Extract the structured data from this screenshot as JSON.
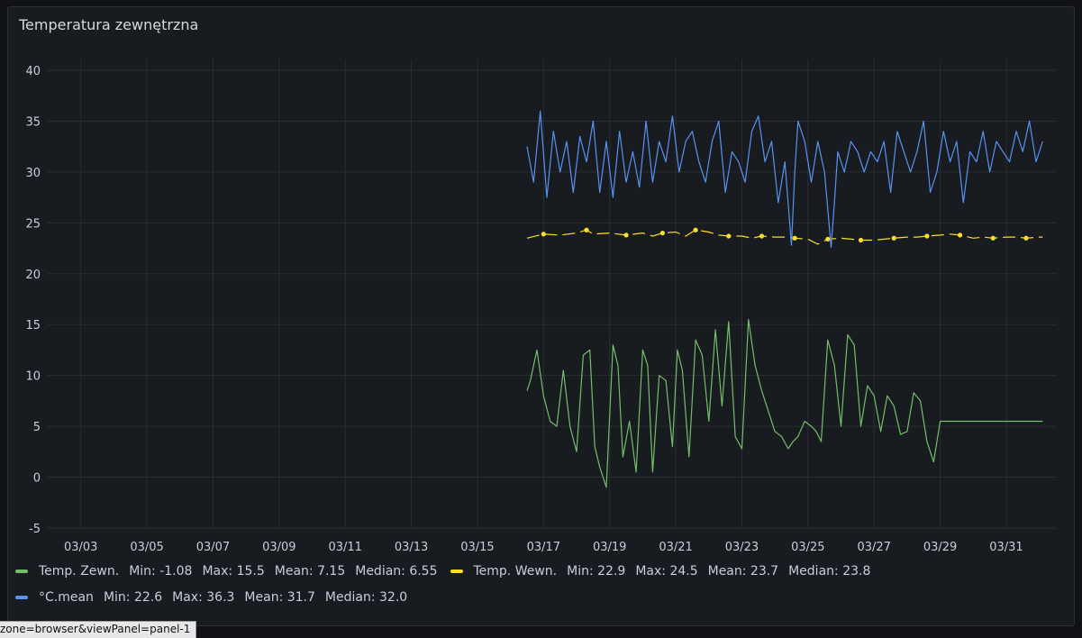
{
  "panel": {
    "title": "Temperatura zewnętrzna"
  },
  "status_url": "zone=browser&viewPanel=panel-1",
  "chart_data": {
    "type": "line",
    "title": "Temperatura zewnętrzna",
    "xlabel": "",
    "ylabel": "",
    "x_ticks": [
      "03/03",
      "03/05",
      "03/07",
      "03/09",
      "03/11",
      "03/13",
      "03/15",
      "03/17",
      "03/19",
      "03/21",
      "03/23",
      "03/25",
      "03/27",
      "03/29",
      "03/31"
    ],
    "xlim": [
      "03/02 00:00",
      "04/01 12:00"
    ],
    "y_ticks": [
      40,
      35,
      30,
      25,
      20,
      15,
      10,
      5,
      0,
      -5
    ],
    "ylim": [
      -5,
      40
    ],
    "grid": true,
    "legend_position": "bottom",
    "series": [
      {
        "name": "Temp. Zewn.",
        "color": "#73bf69",
        "stats": {
          "min": "-1.08",
          "max": "15.5",
          "mean": "7.15",
          "median": "6.55"
        },
        "x_days": [
          16.5,
          16.6,
          16.8,
          17.0,
          17.2,
          17.4,
          17.6,
          17.8,
          18.0,
          18.2,
          18.4,
          18.55,
          18.7,
          18.9,
          19.1,
          19.25,
          19.4,
          19.6,
          19.8,
          20.0,
          20.15,
          20.3,
          20.5,
          20.7,
          20.9,
          21.05,
          21.2,
          21.4,
          21.6,
          21.8,
          22.0,
          22.2,
          22.4,
          22.6,
          22.8,
          23.0,
          23.2,
          23.4,
          23.6,
          23.8,
          24.0,
          24.2,
          24.4,
          24.55,
          24.7,
          24.9,
          25.1,
          25.25,
          25.4,
          25.6,
          25.8,
          26.0,
          26.2,
          26.4,
          26.6,
          26.8,
          27.0,
          27.2,
          27.4,
          27.6,
          27.8,
          28.0,
          28.2,
          28.4,
          28.6,
          28.8,
          29.0,
          29.2,
          29.4,
          29.6,
          29.8,
          30.0,
          30.2,
          30.4,
          30.6,
          30.8,
          31.0,
          31.2,
          31.4,
          31.6,
          31.8,
          32.0,
          32.1
        ],
        "values": [
          8.5,
          9.5,
          12.5,
          8,
          5.5,
          5,
          10.5,
          5,
          2.5,
          12,
          12.5,
          3,
          1,
          -1,
          13,
          11,
          2,
          5.5,
          0.5,
          12.5,
          11,
          0.5,
          10,
          9.5,
          3,
          12.5,
          10.5,
          2,
          13.5,
          12,
          5.5,
          14.5,
          7,
          15.3,
          4,
          2.8,
          15.5,
          11,
          8.5,
          6.5,
          4.5,
          4,
          2.8,
          3.5,
          4,
          5.5,
          5,
          4.5,
          3.5,
          13.5,
          11,
          5,
          14,
          13,
          5,
          9,
          8,
          4.5,
          8,
          7,
          4.2,
          4.5,
          8.3,
          7.5,
          3.5,
          1.5,
          5.5,
          5.5,
          5.5,
          5.5,
          5.5,
          5.5,
          5.5,
          5.5,
          5.5,
          5.5,
          5.5,
          5.5,
          5.5,
          5.5,
          5.5,
          5.5,
          5.5
        ]
      },
      {
        "name": "Temp. Wewn.",
        "color": "#fade2a",
        "stats": {
          "min": "22.9",
          "max": "24.5",
          "mean": "23.7",
          "median": "23.8"
        },
        "x_days": [
          16.5,
          17.0,
          17.5,
          18.0,
          18.3,
          18.5,
          19.0,
          19.5,
          20.0,
          20.3,
          20.6,
          21.0,
          21.3,
          21.6,
          22.0,
          22.3,
          22.6,
          23.0,
          23.3,
          23.6,
          24.0,
          24.3,
          24.6,
          25.0,
          25.3,
          25.6,
          26.0,
          26.3,
          26.6,
          27.0,
          27.3,
          27.6,
          28.0,
          28.3,
          28.6,
          29.0,
          29.3,
          29.6,
          30.0,
          30.3,
          30.6,
          31.0,
          31.3,
          31.6,
          32.0,
          32.1
        ],
        "values": [
          23.5,
          23.9,
          23.8,
          24.0,
          24.3,
          23.9,
          24.0,
          23.8,
          24.0,
          23.7,
          24.0,
          24.1,
          23.7,
          24.3,
          24.1,
          23.8,
          23.7,
          23.7,
          23.5,
          23.7,
          23.6,
          23.6,
          23.5,
          23.4,
          22.9,
          23.4,
          23.5,
          23.4,
          23.3,
          23.3,
          23.4,
          23.5,
          23.6,
          23.6,
          23.7,
          23.8,
          23.9,
          23.8,
          23.5,
          23.6,
          23.5,
          23.6,
          23.6,
          23.5,
          23.6,
          23.6
        ]
      },
      {
        "name": "°C.mean",
        "color": "#5794f2",
        "stats": {
          "min": "22.6",
          "max": "36.3",
          "mean": "31.7",
          "median": "32.0"
        },
        "x_days": [
          16.5,
          16.7,
          16.9,
          17.1,
          17.3,
          17.5,
          17.7,
          17.9,
          18.1,
          18.3,
          18.5,
          18.7,
          18.9,
          19.1,
          19.3,
          19.5,
          19.7,
          19.9,
          20.1,
          20.3,
          20.5,
          20.7,
          20.9,
          21.1,
          21.3,
          21.5,
          21.7,
          21.9,
          22.1,
          22.3,
          22.5,
          22.7,
          22.9,
          23.1,
          23.3,
          23.5,
          23.7,
          23.9,
          24.1,
          24.3,
          24.5,
          24.6,
          24.7,
          24.9,
          25.1,
          25.3,
          25.5,
          25.7,
          25.8,
          25.9,
          26.1,
          26.3,
          26.5,
          26.7,
          26.9,
          27.1,
          27.3,
          27.5,
          27.7,
          27.9,
          28.1,
          28.3,
          28.5,
          28.7,
          28.9,
          29.1,
          29.3,
          29.5,
          29.7,
          29.9,
          30.1,
          30.3,
          30.5,
          30.7,
          30.9,
          31.1,
          31.3,
          31.5,
          31.7,
          31.9,
          32.1
        ],
        "values": [
          32.5,
          29,
          36,
          27.5,
          34,
          30,
          33,
          28,
          33.5,
          31,
          35,
          28,
          33,
          27.5,
          34,
          29,
          32,
          28.5,
          35,
          29,
          33,
          31,
          35.5,
          30,
          33,
          34,
          31,
          29,
          33,
          35,
          28,
          32,
          31,
          29,
          34,
          35.5,
          31,
          33,
          27,
          31,
          22.8,
          30,
          35,
          33,
          29,
          33,
          30,
          22.6,
          27,
          32,
          30,
          33,
          32,
          30,
          32,
          31,
          33,
          28,
          34,
          32,
          30,
          32,
          35,
          28,
          30,
          34,
          31,
          33,
          27,
          32,
          31,
          34,
          30,
          33,
          32,
          31,
          34,
          32,
          35,
          31,
          33
        ]
      }
    ]
  }
}
